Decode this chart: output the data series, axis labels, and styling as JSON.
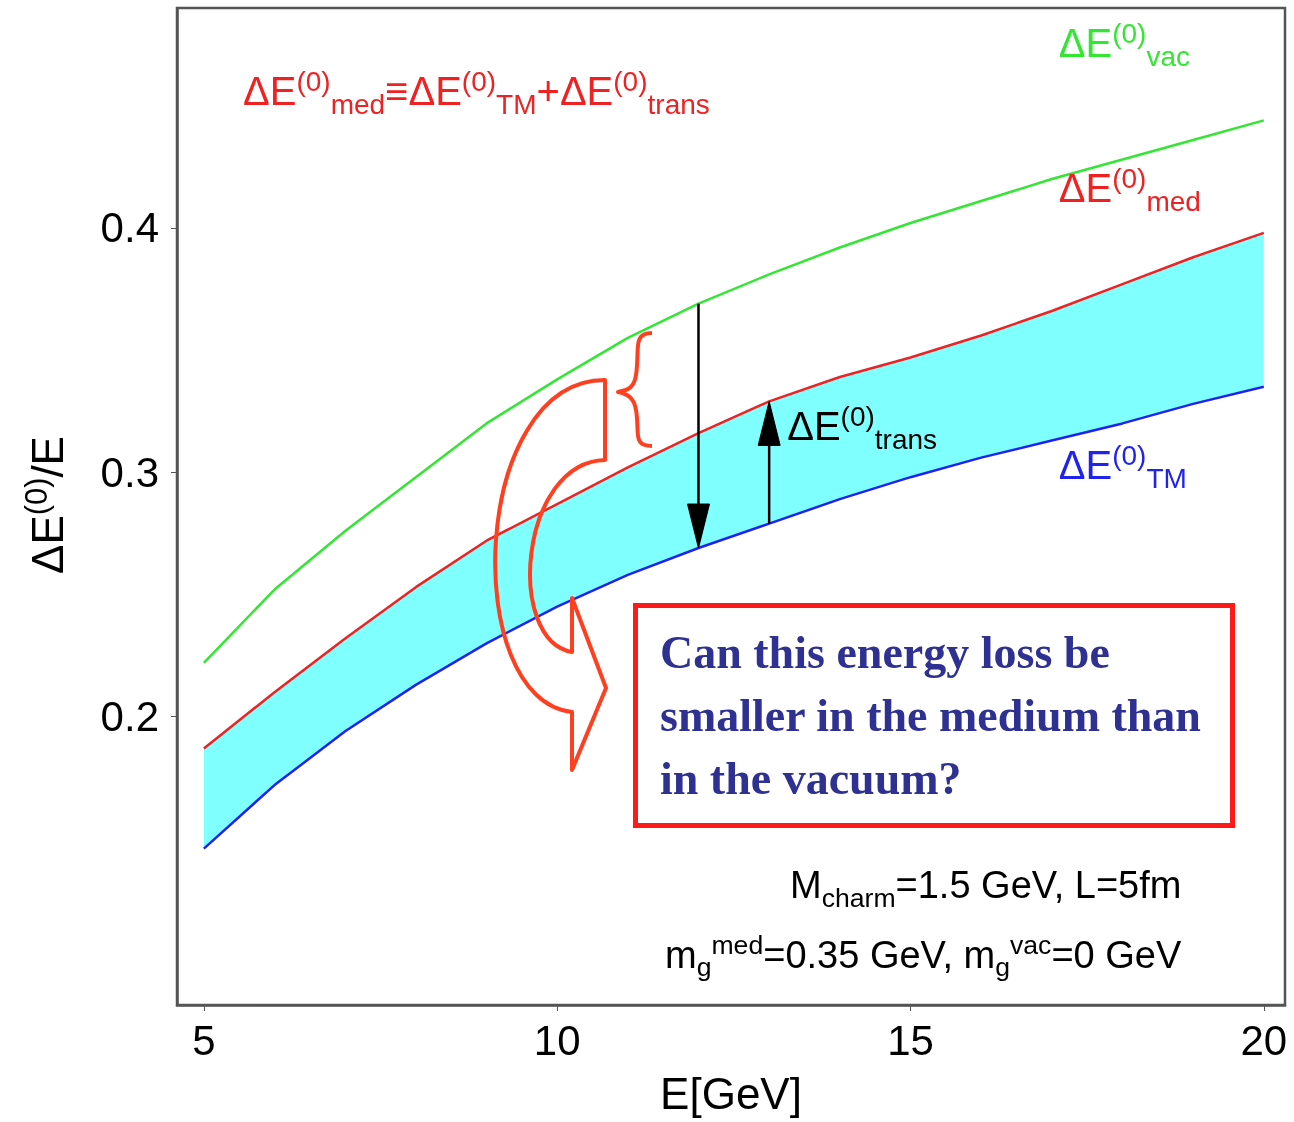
{
  "chart_data": {
    "type": "line",
    "xlabel": "E[GeV]",
    "ylabel": "ΔE$^{(0)}$/E",
    "xlim": [
      4.62,
      20.3
    ],
    "ylim": [
      0.082,
      0.49
    ],
    "xticks": [
      5,
      10,
      15,
      20
    ],
    "yticks": [
      0.2,
      0.3,
      0.4
    ],
    "grid": false,
    "marker": "none",
    "line_style": "solid",
    "x": [
      5,
      6,
      7,
      8,
      9,
      10,
      11,
      12,
      13,
      14,
      15,
      16,
      17,
      18,
      19,
      20
    ],
    "series": [
      {
        "type": "area",
        "color": "#80ffff",
        "values": [
          0.187,
          0.21,
          0.232,
          0.253,
          0.272,
          0.287,
          0.302,
          0.316,
          0.329,
          0.339,
          0.347,
          0.356,
          0.366,
          0.377,
          0.388,
          0.398
        ]
      },
      {
        "name": "ΔE$^{(0)}$$_{vac}$",
        "color": "#33e633",
        "values": [
          0.222,
          0.252,
          0.276,
          0.298,
          0.32,
          0.338,
          0.355,
          0.369,
          0.381,
          0.392,
          0.402,
          0.411,
          0.42,
          0.428,
          0.436,
          0.444
        ]
      },
      {
        "name": "ΔE$^{(0)}$$_{med}$",
        "color": "#ee2222",
        "values": [
          0.187,
          0.21,
          0.232,
          0.253,
          0.272,
          0.287,
          0.302,
          0.316,
          0.329,
          0.339,
          0.347,
          0.356,
          0.366,
          0.377,
          0.388,
          0.398
        ]
      },
      {
        "name": "ΔE$^{(0)}$$_{TM}$",
        "color": "#2222ee",
        "values": [
          0.146,
          0.172,
          0.194,
          0.213,
          0.23,
          0.245,
          0.258,
          0.269,
          0.279,
          0.289,
          0.298,
          0.306,
          0.313,
          0.32,
          0.328,
          0.335
        ]
      }
    ],
    "annotations": [
      "ΔE$^{(0)}$$_{med}$≡ΔE$^{(0)}$$_{TM}$+ΔE$^{(0)}$$_{trans}$",
      {
        "text": "ΔE$^{(0)}$$_{trans}$",
        "x": 13,
        "y": 0.329
      },
      "Can this energy loss be smaller in the medium than in the vacuum?",
      "M$_{charm}$=1.5 GeV, L=5fm",
      "m$_{g}$$^{med}$=0.35 GeV, m$_{g}$$^{vac}$=0 GeV"
    ]
  }
}
